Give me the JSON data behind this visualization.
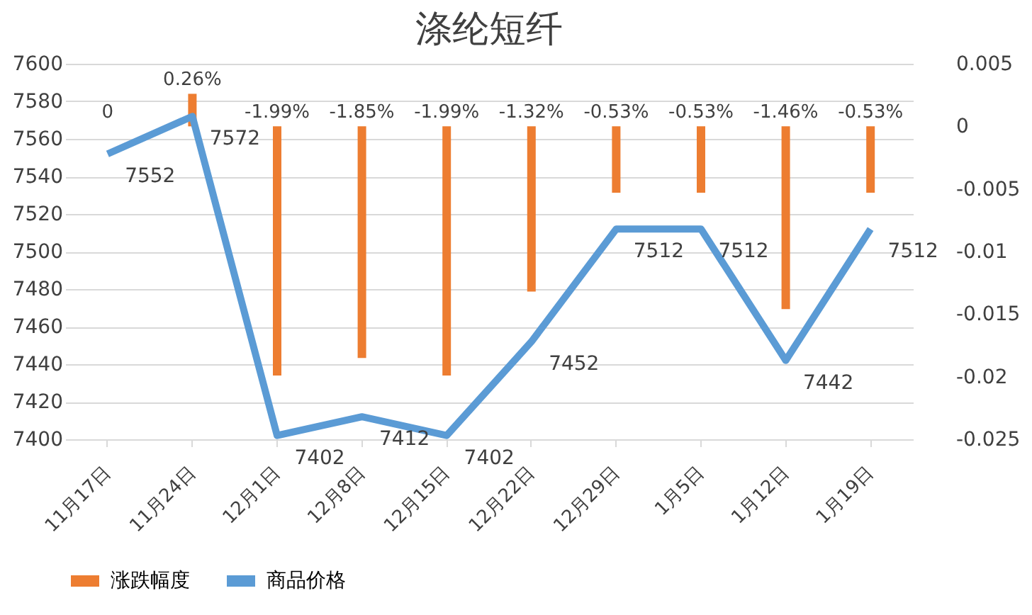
{
  "chart_data": {
    "type": "bar",
    "title": "涤纶短纤",
    "categories": [
      "11月17日",
      "11月24日",
      "12月1日",
      "12月8日",
      "12月15日",
      "12月22日",
      "12月29日",
      "1月5日",
      "1月12日",
      "1月19日"
    ],
    "series": [
      {
        "name": "涨跌幅度",
        "axis": "y2",
        "color": "#ed7d31",
        "values": [
          0,
          0.0026,
          -0.0199,
          -0.0185,
          -0.0199,
          -0.0132,
          -0.0053,
          -0.0053,
          -0.0146,
          -0.0053
        ],
        "value_labels": [
          "0",
          "0.26%",
          "-1.99%",
          "-1.85%",
          "-1.99%",
          "-1.32%",
          "-0.53%",
          "-0.53%",
          "-1.46%",
          "-0.53%"
        ]
      },
      {
        "name": "商品价格",
        "type": "line",
        "color": "#5b9bd5",
        "values": [
          7552,
          7572,
          7402,
          7412,
          7402,
          7452,
          7512,
          7512,
          7442,
          7512
        ],
        "value_labels": [
          "7552",
          "7572",
          "7402",
          "7412",
          "7402",
          "7452",
          "7512",
          "7512",
          "7442",
          "7512"
        ]
      }
    ],
    "ylim": [
      7400,
      7600
    ],
    "yticks": [
      7400,
      7420,
      7440,
      7460,
      7480,
      7500,
      7520,
      7540,
      7560,
      7580,
      7600
    ],
    "y2lim": [
      -0.025,
      0.005
    ],
    "y2ticks": [
      -0.025,
      -0.02,
      -0.015,
      -0.01,
      -0.005,
      0,
      0.005
    ],
    "grid": "y",
    "legend": "bottom",
    "marker": "none",
    "line_style": "solid"
  }
}
